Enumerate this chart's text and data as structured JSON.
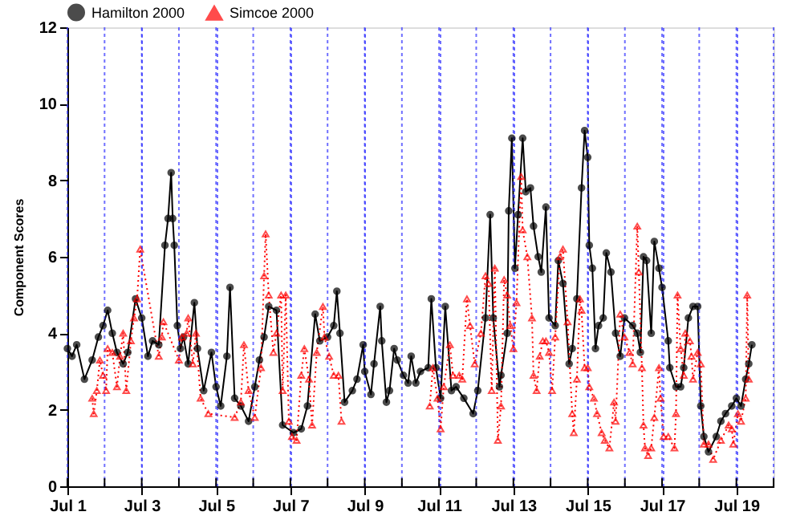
{
  "chart_data": {
    "type": "line",
    "ylabel": "Component Scores",
    "xlim": [
      "2000-07-01",
      "2000-07-20"
    ],
    "ylim": [
      0,
      12
    ],
    "yticks": [
      0,
      2,
      4,
      6,
      8,
      10,
      12
    ],
    "xticks": [
      {
        "value": "2000-07-01",
        "label": "Jul 1"
      },
      {
        "value": "2000-07-02",
        "label": null
      },
      {
        "value": "2000-07-03",
        "label": "Jul 3"
      },
      {
        "value": "2000-07-04",
        "label": null
      },
      {
        "value": "2000-07-05",
        "label": "Jul 5"
      },
      {
        "value": "2000-07-06",
        "label": null
      },
      {
        "value": "2000-07-07",
        "label": "Jul 7"
      },
      {
        "value": "2000-07-08",
        "label": null
      },
      {
        "value": "2000-07-09",
        "label": "Jul 9"
      },
      {
        "value": "2000-07-10",
        "label": null
      },
      {
        "value": "2000-07-11",
        "label": "Jul 11"
      },
      {
        "value": "2000-07-12",
        "label": null
      },
      {
        "value": "2000-07-13",
        "label": "Jul 13"
      },
      {
        "value": "2000-07-14",
        "label": null
      },
      {
        "value": "2000-07-15",
        "label": "Jul 15"
      },
      {
        "value": "2000-07-16",
        "label": null
      },
      {
        "value": "2000-07-17",
        "label": "Jul 17"
      },
      {
        "value": "2000-07-18",
        "label": null
      },
      {
        "value": "2000-07-19",
        "label": "Jul 19"
      },
      {
        "value": "2000-07-20",
        "label": null
      }
    ],
    "grid": "x",
    "legend": "top",
    "series": [
      {
        "name": "Hamilton 2000",
        "color": "#000000",
        "marker": "circle",
        "line_style": "solid",
        "x": [
          "2000-07-01T00:00",
          "2000-07-01T03:00",
          "2000-07-01T06:00",
          "2000-07-01T11:00",
          "2000-07-01T16:00",
          "2000-07-01T20:00",
          "2000-07-01T23:00",
          "2000-07-02T02:00",
          "2000-07-02T05:00",
          "2000-07-02T08:00",
          "2000-07-02T12:00",
          "2000-07-02T15:00",
          "2000-07-02T20:00",
          "2000-07-03T00:00",
          "2000-07-03T04:00",
          "2000-07-03T07:00",
          "2000-07-03T11:00",
          "2000-07-03T15:00",
          "2000-07-03T17:00",
          "2000-07-03T19:00",
          "2000-07-03T20:00",
          "2000-07-03T21:00",
          "2000-07-03T23:00",
          "2000-07-04T01:00",
          "2000-07-04T03:00",
          "2000-07-04T06:00",
          "2000-07-04T10:00",
          "2000-07-04T12:00",
          "2000-07-04T16:00",
          "2000-07-04T21:00",
          "2000-07-05T00:00",
          "2000-07-05T03:00",
          "2000-07-05T07:00",
          "2000-07-05T09:00",
          "2000-07-05T12:00",
          "2000-07-05T16:00",
          "2000-07-05T21:00",
          "2000-07-06T01:00",
          "2000-07-06T04:00",
          "2000-07-06T07:00",
          "2000-07-06T10:00",
          "2000-07-06T15:00",
          "2000-07-06T19:00",
          "2000-07-07T02:00",
          "2000-07-07T07:00",
          "2000-07-07T11:00",
          "2000-07-07T16:00",
          "2000-07-07T19:00",
          "2000-07-08T00:00",
          "2000-07-08T04:00",
          "2000-07-08T06:00",
          "2000-07-08T08:00",
          "2000-07-08T11:00",
          "2000-07-08T16:00",
          "2000-07-08T19:00",
          "2000-07-08T23:00",
          "2000-07-09T00:00",
          "2000-07-09T04:00",
          "2000-07-09T06:00",
          "2000-07-09T10:00",
          "2000-07-09T11:00",
          "2000-07-09T14:00",
          "2000-07-09T16:00",
          "2000-07-09T19:00",
          "2000-07-09T21:00",
          "2000-07-10T01:00",
          "2000-07-10T04:00",
          "2000-07-10T06:00",
          "2000-07-10T09:00",
          "2000-07-10T12:00",
          "2000-07-10T17:00",
          "2000-07-10T19:00",
          "2000-07-10T22:00",
          "2000-07-11T01:00",
          "2000-07-11T04:00",
          "2000-07-11T08:00",
          "2000-07-11T11:00",
          "2000-07-11T16:00",
          "2000-07-11T22:00",
          "2000-07-12T01:00",
          "2000-07-12T06:00",
          "2000-07-12T09:00",
          "2000-07-12T11:00",
          "2000-07-12T15:00",
          "2000-07-12T16:00",
          "2000-07-12T20:00",
          "2000-07-12T21:00",
          "2000-07-12T23:00",
          "2000-07-13T01:00",
          "2000-07-13T03:00",
          "2000-07-13T06:00",
          "2000-07-13T08:00",
          "2000-07-13T11:00",
          "2000-07-13T13:00",
          "2000-07-13T16:00",
          "2000-07-13T18:00",
          "2000-07-13T21:00",
          "2000-07-13T23:00",
          "2000-07-14T03:00",
          "2000-07-14T05:00",
          "2000-07-14T08:00",
          "2000-07-14T12:00",
          "2000-07-14T14:00",
          "2000-07-14T17:00",
          "2000-07-14T20:00",
          "2000-07-14T22:00",
          "2000-07-15T00:00",
          "2000-07-15T01:00",
          "2000-07-15T03:00",
          "2000-07-15T05:00",
          "2000-07-15T07:00",
          "2000-07-15T10:00",
          "2000-07-15T12:00",
          "2000-07-15T15:00",
          "2000-07-15T18:00",
          "2000-07-15T21:00",
          "2000-07-15T23:45",
          "2000-07-16T05:00",
          "2000-07-16T08:00",
          "2000-07-16T10:00",
          "2000-07-16T12:00",
          "2000-07-16T14:00",
          "2000-07-16T17:00",
          "2000-07-16T19:00",
          "2000-07-16T22:00",
          "2000-07-17T00:00",
          "2000-07-17T04:00",
          "2000-07-17T05:00",
          "2000-07-17T09:00",
          "2000-07-17T12:00",
          "2000-07-17T14:00",
          "2000-07-17T17:00",
          "2000-07-17T20:00",
          "2000-07-17T23:00",
          "2000-07-18T01:00",
          "2000-07-18T03:00",
          "2000-07-18T06:00",
          "2000-07-18T11:00",
          "2000-07-18T14:00",
          "2000-07-18T17:00",
          "2000-07-18T21:00",
          "2000-07-19T00:00",
          "2000-07-19T03:00",
          "2000-07-19T06:00",
          "2000-07-19T08:00",
          "2000-07-19T10:00"
        ],
        "values": [
          3.6,
          3.4,
          3.7,
          2.8,
          3.3,
          3.9,
          4.2,
          4.6,
          4.0,
          3.5,
          3.2,
          3.5,
          4.9,
          4.4,
          3.4,
          3.8,
          3.7,
          6.3,
          7.0,
          8.2,
          7.0,
          6.3,
          4.2,
          3.6,
          3.9,
          3.2,
          4.8,
          3.6,
          2.5,
          3.5,
          2.6,
          2.1,
          3.4,
          5.2,
          2.3,
          2.1,
          1.7,
          2.6,
          3.3,
          3.9,
          4.7,
          4.6,
          1.6,
          1.4,
          1.5,
          2.1,
          4.5,
          3.8,
          3.9,
          4.2,
          5.1,
          4.0,
          2.2,
          2.5,
          2.8,
          3.7,
          3.0,
          2.4,
          3.2,
          4.7,
          3.8,
          2.2,
          2.5,
          3.6,
          3.3,
          2.9,
          2.7,
          3.4,
          2.7,
          3.0,
          3.1,
          4.9,
          3.1,
          2.3,
          4.7,
          2.5,
          2.6,
          2.3,
          1.9,
          2.5,
          4.4,
          7.1,
          4.4,
          2.6,
          2.9,
          4.0,
          7.2,
          9.1,
          5.7,
          7.1,
          9.1,
          7.7,
          7.8,
          6.8,
          6.0,
          5.6,
          7.3,
          4.4,
          4.2,
          5.9,
          5.3,
          3.2,
          3.6,
          4.9,
          7.8,
          9.3,
          8.6,
          6.3,
          5.7,
          3.6,
          4.2,
          4.4,
          6.1,
          5.6,
          4.0,
          3.4,
          4.4,
          4.2,
          4.0,
          3.5,
          6.0,
          5.9,
          4.0,
          6.4,
          5.7,
          5.2,
          3.8,
          3.1,
          2.6,
          2.6,
          3.1,
          4.4,
          4.7,
          4.7,
          2.1,
          1.3,
          0.9,
          1.3,
          1.7,
          1.9,
          2.1,
          2.3,
          2.1,
          2.8,
          3.2,
          3.7
        ]
      },
      {
        "name": "Simcoe 2000",
        "color": "#ff0000",
        "marker": "triangle",
        "line_style": "dotted",
        "x": [
          "2000-07-01T16:00",
          "2000-07-01T17:00",
          "2000-07-01T19:00",
          "2000-07-01T21:00",
          "2000-07-01T23:00",
          "2000-07-02T01:00",
          "2000-07-02T02:00",
          "2000-07-02T05:00",
          "2000-07-02T08:00",
          "2000-07-02T10:00",
          "2000-07-02T12:00",
          "2000-07-02T14:00",
          "2000-07-02T17:00",
          "2000-07-02T19:00",
          "2000-07-02T21:00",
          "2000-07-02T23:00",
          "2000-07-03T11:00",
          "2000-07-03T13:00",
          "2000-07-03T14:00",
          "2000-07-04T00:00",
          "2000-07-04T02:00",
          "2000-07-04T05:00",
          "2000-07-04T06:00",
          "2000-07-04T09:00",
          "2000-07-04T11:00",
          "2000-07-04T14:00",
          "2000-07-04T19:00",
          "2000-07-05T12:00",
          "2000-07-05T16:00",
          "2000-07-05T18:00",
          "2000-07-05T21:00",
          "2000-07-06T01:00",
          "2000-07-06T05:00",
          "2000-07-06T07:00",
          "2000-07-06T08:00",
          "2000-07-06T10:00",
          "2000-07-06T13:00",
          "2000-07-06T15:00",
          "2000-07-06T18:00",
          "2000-07-06T19:00",
          "2000-07-06T21:00",
          "2000-07-06T23:00",
          "2000-07-07T01:00",
          "2000-07-07T04:00",
          "2000-07-07T07:00",
          "2000-07-07T09:00",
          "2000-07-07T12:00",
          "2000-07-07T14:00",
          "2000-07-07T17:00",
          "2000-07-07T21:00",
          "2000-07-07T22:00",
          "2000-07-08T01:00",
          "2000-07-08T04:00",
          "2000-07-08T07:00",
          "2000-07-08T09:00",
          "2000-07-09T12:00",
          "2000-07-10T18:00",
          "2000-07-10T20:00",
          "2000-07-10T23:00",
          "2000-07-11T01:00",
          "2000-07-11T03:00",
          "2000-07-11T07:00",
          "2000-07-11T09:00",
          "2000-07-11T13:00",
          "2000-07-11T15:00",
          "2000-07-11T18:00",
          "2000-07-11T20:00",
          "2000-07-11T23:00",
          "2000-07-12T03:00",
          "2000-07-12T06:00",
          "2000-07-12T08:00",
          "2000-07-12T10:00",
          "2000-07-12T12:00",
          "2000-07-12T14:00",
          "2000-07-12T16:00",
          "2000-07-12T18:00",
          "2000-07-12T20:00",
          "2000-07-12T22:00",
          "2000-07-13T00:00",
          "2000-07-13T02:00",
          "2000-07-13T05:00",
          "2000-07-13T06:00",
          "2000-07-13T09:00",
          "2000-07-13T12:00",
          "2000-07-13T13:00",
          "2000-07-13T15:00",
          "2000-07-13T17:00",
          "2000-07-13T19:00",
          "2000-07-13T21:00",
          "2000-07-13T23:00",
          "2000-07-14T01:00",
          "2000-07-14T03:00",
          "2000-07-14T06:00",
          "2000-07-14T08:00",
          "2000-07-14T11:00",
          "2000-07-14T14:00",
          "2000-07-14T15:00",
          "2000-07-14T17:00",
          "2000-07-14T19:00",
          "2000-07-14T20:00",
          "2000-07-14T22:00",
          "2000-07-15T00:00",
          "2000-07-15T01:00",
          "2000-07-15T04:00",
          "2000-07-15T06:00",
          "2000-07-15T09:00",
          "2000-07-15T11:00",
          "2000-07-15T14:00",
          "2000-07-15T17:00",
          "2000-07-15T18:00",
          "2000-07-15T21:00",
          "2000-07-15T23:45",
          "2000-07-16T03:00",
          "2000-07-16T05:00",
          "2000-07-16T08:00",
          "2000-07-16T09:00",
          "2000-07-16T11:00",
          "2000-07-16T12:00",
          "2000-07-16T13:00",
          "2000-07-16T15:00",
          "2000-07-16T17:00",
          "2000-07-16T19:00",
          "2000-07-16T22:00",
          "2000-07-16T23:00",
          "2000-07-17T01:00",
          "2000-07-17T04:00",
          "2000-07-17T08:00",
          "2000-07-17T09:00",
          "2000-07-17T10:00",
          "2000-07-17T12:00",
          "2000-07-17T14:00",
          "2000-07-17T15:00",
          "2000-07-17T18:00",
          "2000-07-17T19:00",
          "2000-07-17T20:00",
          "2000-07-17T23:00",
          "2000-07-18T01:00",
          "2000-07-18T03:00",
          "2000-07-18T06:00",
          "2000-07-18T09:00",
          "2000-07-18T14:00",
          "2000-07-18T19:00",
          "2000-07-18T21:00",
          "2000-07-18T22:00",
          "2000-07-19T01:00",
          "2000-07-19T03:00",
          "2000-07-19T06:00",
          "2000-07-19T07:00",
          "2000-07-19T08:00"
        ],
        "values": [
          2.3,
          1.9,
          2.5,
          3.3,
          2.9,
          2.5,
          3.6,
          3.5,
          2.6,
          3.4,
          4.0,
          2.5,
          3.8,
          4.4,
          4.9,
          6.2,
          3.4,
          3.9,
          4.3,
          3.3,
          3.9,
          4.0,
          4.4,
          3.2,
          4.0,
          2.3,
          1.9,
          1.8,
          2.2,
          3.7,
          2.5,
          1.8,
          3.1,
          5.5,
          6.6,
          5.0,
          3.5,
          4.0,
          5.0,
          2.5,
          5.0,
          1.7,
          1.3,
          1.2,
          2.9,
          3.6,
          2.8,
          1.6,
          3.5,
          4.7,
          3.9,
          3.4,
          2.9,
          2.9,
          1.7,
          null,
          2.1,
          3.1,
          2.3,
          1.5,
          2.6,
          3.7,
          2.9,
          2.9,
          2.8,
          4.9,
          4.2,
          3.2,
          4.0,
          5.5,
          5.3,
          2.5,
          5.7,
          1.2,
          2.1,
          5.4,
          5.0,
          4.2,
          3.6,
          4.8,
          8.1,
          6.7,
          6.0,
          4.4,
          2.9,
          2.5,
          3.4,
          3.8,
          3.8,
          3.5,
          2.5,
          3.9,
          6.0,
          6.2,
          4.3,
          1.9,
          1.4,
          2.8,
          4.9,
          4.6,
          3.1,
          3.1,
          2.6,
          2.3,
          1.9,
          1.4,
          1.2,
          1.0,
          2.2,
          1.7,
          4.5,
          3.9,
          3.5,
          3.2,
          6.8,
          5.6,
          3.1,
          1.6,
          1.0,
          0.8,
          1.0,
          1.8,
          3.1,
          2.3,
          1.3,
          1.3,
          1.0,
          1.9,
          5.0,
          3.6,
          2.9,
          4.0,
          3.8,
          3.4,
          2.8,
          3.5,
          3.2,
          1.1,
          1.1,
          0.7,
          1.2,
          1.6,
          1.5,
          1.1,
          1.9,
          1.7,
          2.3,
          5.0,
          2.8
        ]
      }
    ]
  }
}
